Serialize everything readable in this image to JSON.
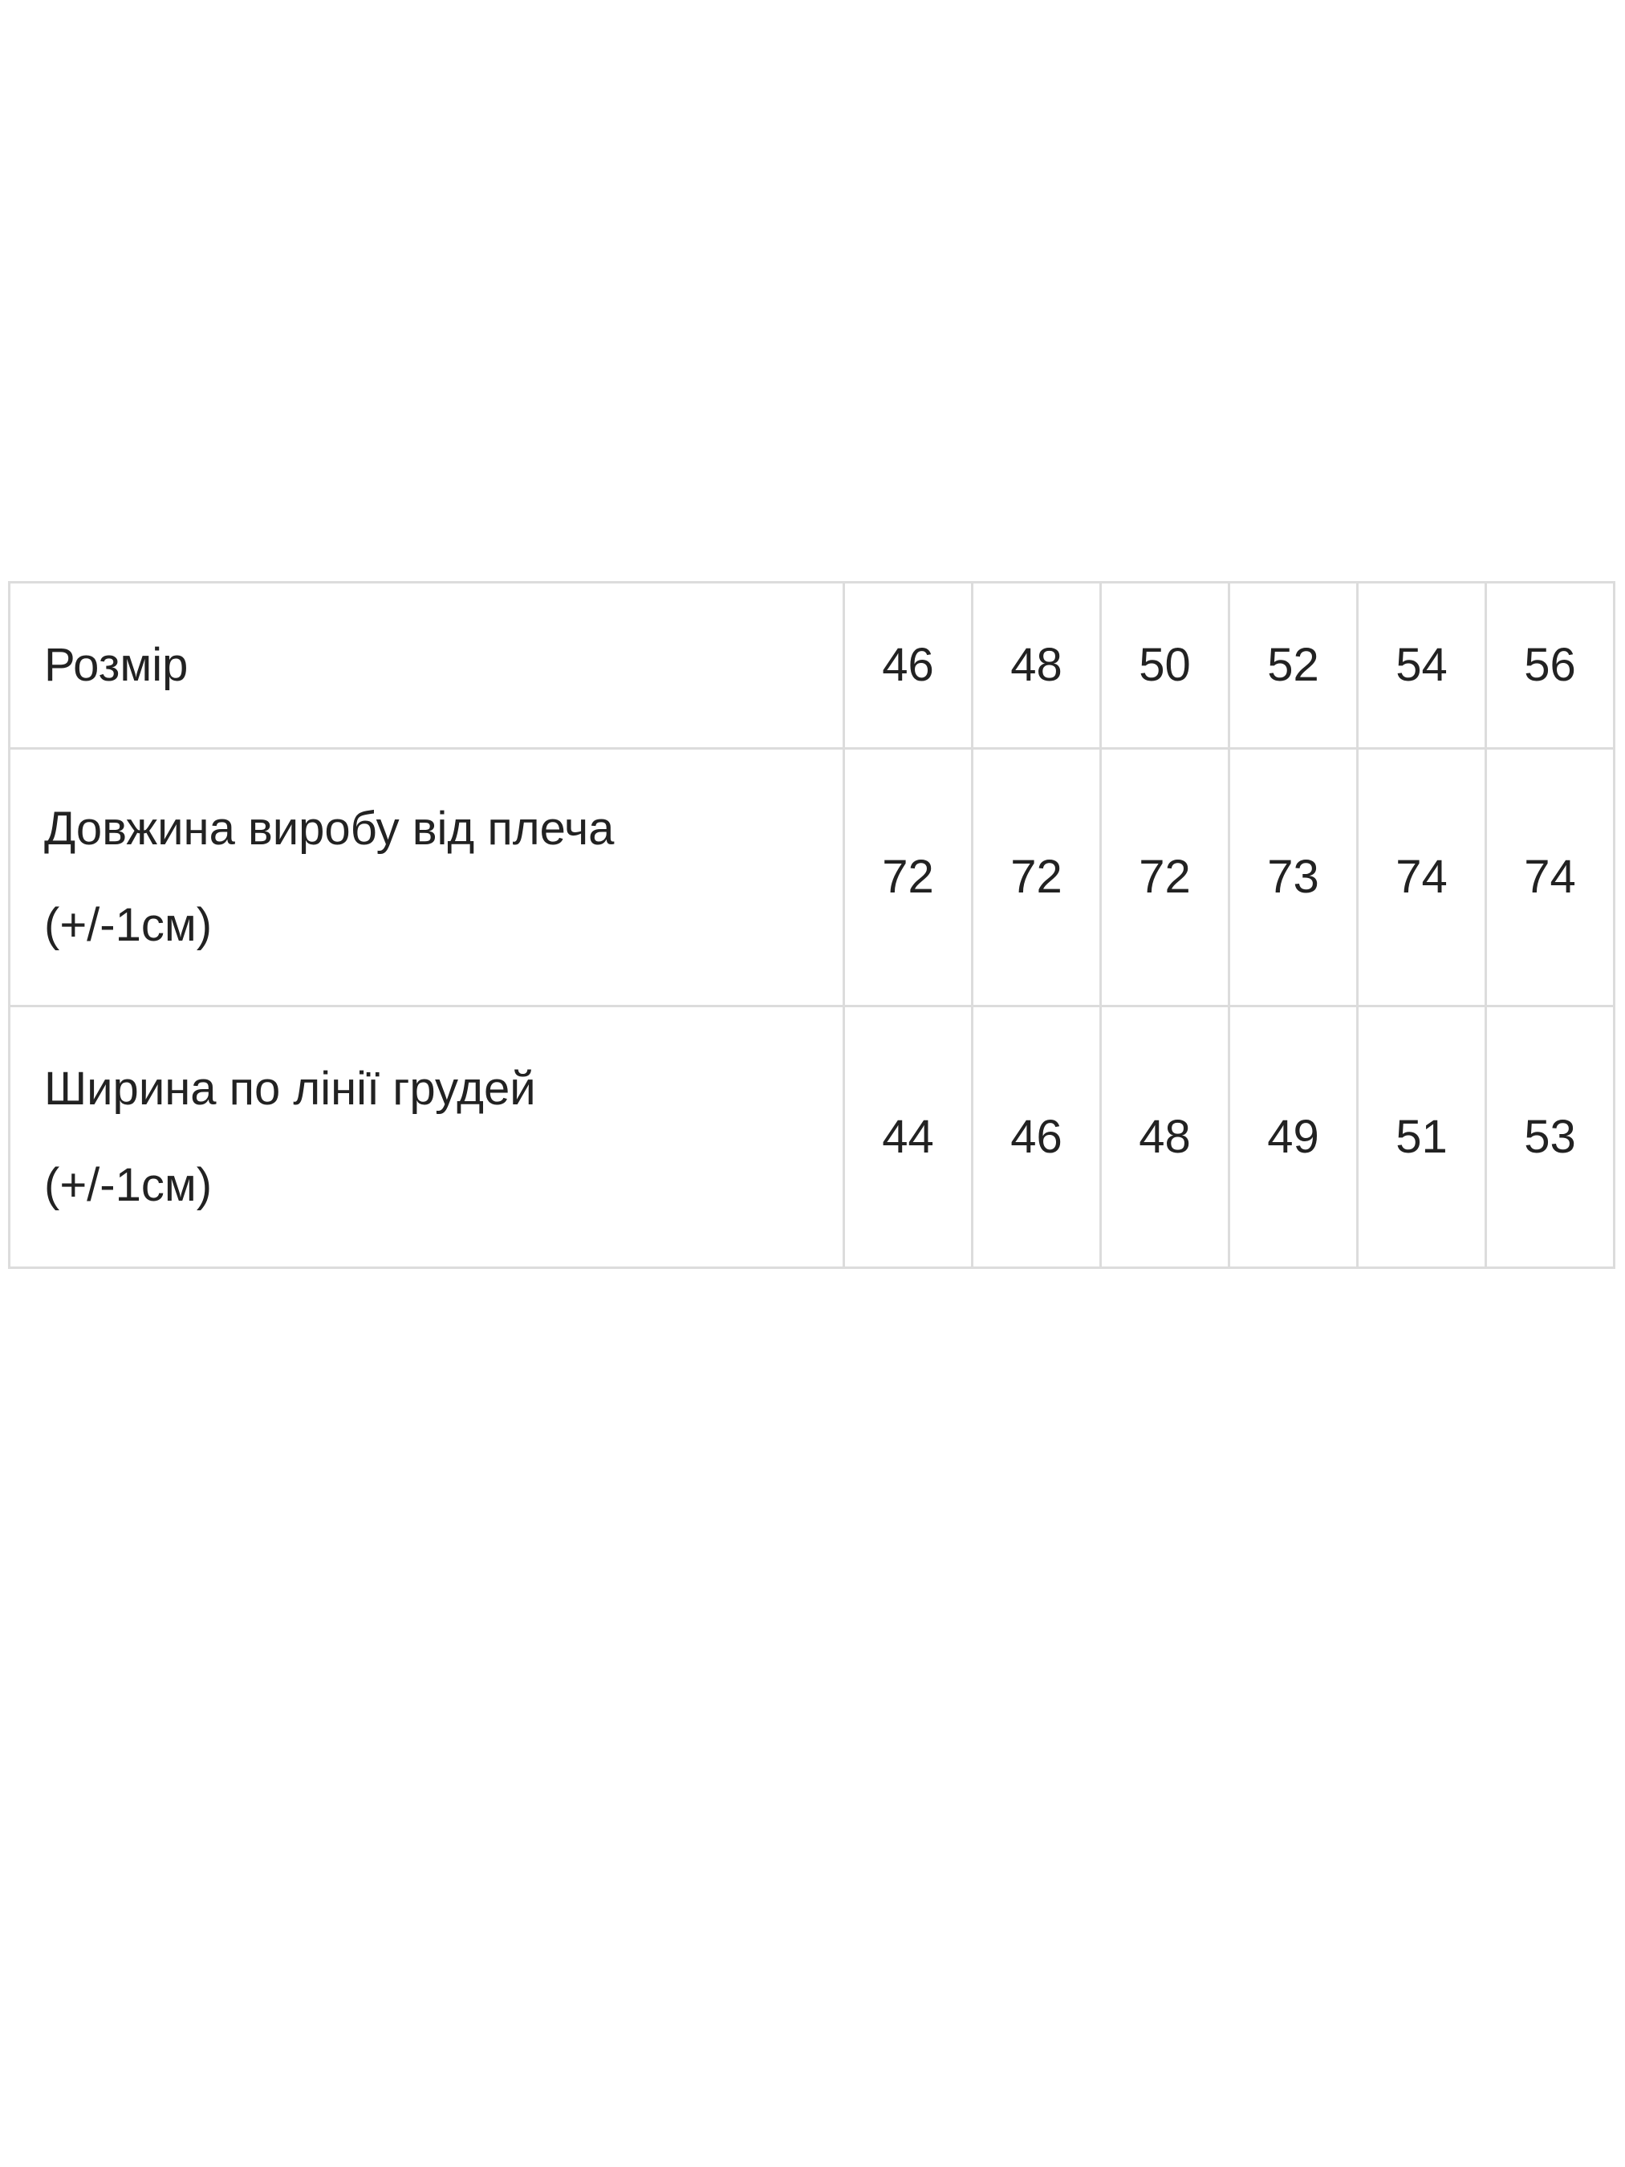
{
  "size_table": {
    "header": {
      "label": "Розмір",
      "values": [
        "46",
        "48",
        "50",
        "52",
        "54",
        "56"
      ]
    },
    "rows": [
      {
        "label_line1": "Довжина виробу від плеча",
        "label_line2": "(+/-1см)",
        "values": [
          "72",
          "72",
          "72",
          "73",
          "74",
          "74"
        ]
      },
      {
        "label_line1": "Ширина по лінії грудей",
        "label_line2": "(+/-1см)",
        "values": [
          "44",
          "46",
          "48",
          "49",
          "51",
          "53"
        ]
      }
    ]
  },
  "colors": {
    "border": "#dcdcdc",
    "text": "#222222",
    "background": "#ffffff"
  }
}
